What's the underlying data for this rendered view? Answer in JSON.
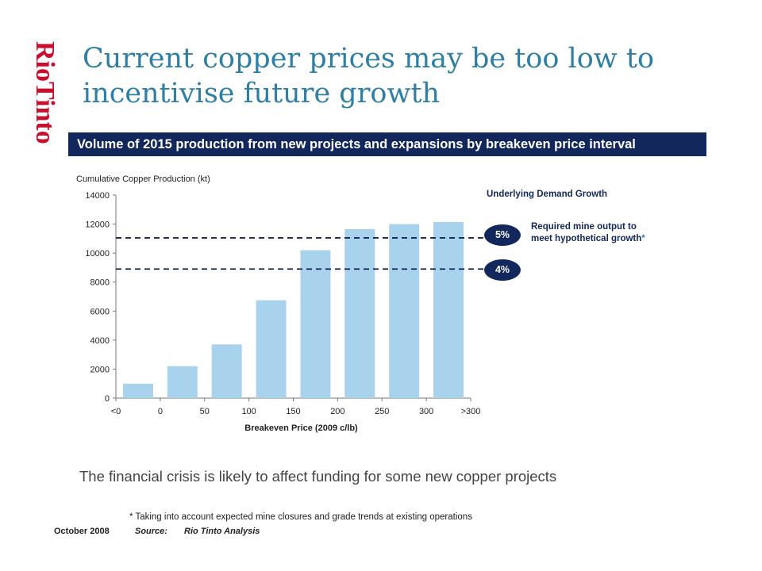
{
  "logo": {
    "text": "RioTinto",
    "color": "#c8102e"
  },
  "title": {
    "line1": "Current copper prices may be too low to",
    "line2": "incentivise future growth"
  },
  "banner": "Volume of 2015 production from new projects and expansions by breakeven price interval",
  "chart_data": {
    "type": "bar",
    "title": "",
    "ylabel": "Cumulative Copper Production (kt)",
    "xlabel": "Breakeven Price (2009 c/lb)",
    "ylim": [
      0,
      14000
    ],
    "yticks": [
      0,
      2000,
      4000,
      6000,
      8000,
      10000,
      12000,
      14000
    ],
    "xticks": [
      "<0",
      "0",
      "50",
      "100",
      "150",
      "200",
      "250",
      "300",
      ">300"
    ],
    "values": [
      1000,
      2200,
      3700,
      6750,
      10200,
      11650,
      12000,
      12150
    ],
    "bar_color": "#a9d2ec",
    "grid": false,
    "reference_lines": [
      {
        "label": "5%",
        "value": 11050
      },
      {
        "label": "4%",
        "value": 8900
      }
    ],
    "reference_line_color": "#12275b"
  },
  "annotations": {
    "header": "Underlying Demand Growth",
    "required_line1": "Required mine output to",
    "required_line2": "meet hypothetical growth",
    "required_star": "*"
  },
  "caption": "The financial crisis is likely to affect funding for some new copper projects",
  "footnote": "* Taking into account expected mine closures and grade trends at existing operations",
  "footer": {
    "date": "October 2008",
    "source_label": "Source:",
    "source_value": "Rio Tinto Analysis"
  }
}
